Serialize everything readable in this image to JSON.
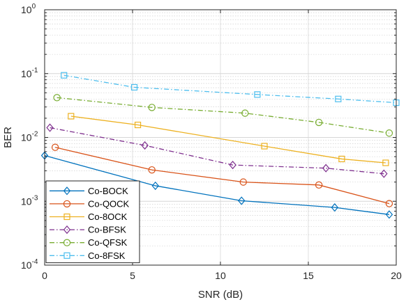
{
  "chart_data": {
    "type": "line",
    "xlabel": "SNR (dB)",
    "ylabel": "BER",
    "xlim": [
      0,
      20
    ],
    "ylim": [
      0.0001,
      1
    ],
    "yscale": "log",
    "grid": true,
    "legend_position": "bottom-left",
    "x_ticks": [
      0,
      5,
      10,
      15,
      20
    ],
    "y_ticks": [
      {
        "value": 0.0001,
        "base": "10",
        "exp": "-4"
      },
      {
        "value": 0.001,
        "base": "10",
        "exp": "-3"
      },
      {
        "value": 0.01,
        "base": "10",
        "exp": "-2"
      },
      {
        "value": 0.1,
        "base": "10",
        "exp": "-1"
      },
      {
        "value": 1,
        "base": "10",
        "exp": "0"
      }
    ],
    "series": [
      {
        "name": "Co-BOCK",
        "color": "#0072BD",
        "dash": "solid",
        "marker": "diamond",
        "x": [
          0,
          6.3,
          11.2,
          16.5,
          19.6
        ],
        "y": [
          0.0052,
          0.00175,
          0.00102,
          0.0008,
          0.00062
        ]
      },
      {
        "name": "Co-QOCK",
        "color": "#D95319",
        "dash": "solid",
        "marker": "circle",
        "x": [
          0.6,
          6.1,
          11.3,
          15.6,
          19.6
        ],
        "y": [
          0.007,
          0.0031,
          0.002,
          0.0018,
          0.00092
        ]
      },
      {
        "name": "Co-8OCK",
        "color": "#EDB120",
        "dash": "solid",
        "marker": "square",
        "x": [
          1.5,
          5.3,
          12.5,
          16.9,
          19.4
        ],
        "y": [
          0.0215,
          0.0157,
          0.0073,
          0.0046,
          0.004
        ]
      },
      {
        "name": "Co-BFSK",
        "color": "#7E2F8E",
        "dash": "dashdot",
        "marker": "diamond",
        "x": [
          0.3,
          5.7,
          10.7,
          16.0,
          19.3
        ],
        "y": [
          0.0142,
          0.0075,
          0.0037,
          0.0033,
          0.0027
        ]
      },
      {
        "name": "Co-QFSK",
        "color": "#77AC30",
        "dash": "dashdot",
        "marker": "circle",
        "x": [
          0.7,
          6.1,
          11.4,
          15.6,
          19.6
        ],
        "y": [
          0.042,
          0.0295,
          0.024,
          0.0172,
          0.0117
        ]
      },
      {
        "name": "Co-8FSK",
        "color": "#4DBEEE",
        "dash": "dashdot",
        "marker": "square",
        "x": [
          1.1,
          5.1,
          12.1,
          16.7,
          20.0
        ],
        "y": [
          0.094,
          0.061,
          0.047,
          0.04,
          0.035
        ]
      }
    ]
  }
}
